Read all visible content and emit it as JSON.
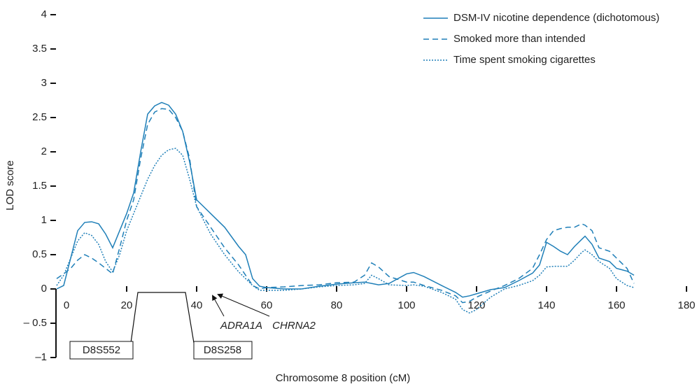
{
  "chart_data": {
    "type": "line",
    "x_label": "Chromosome 8 position (cM)",
    "y_label": "LOD score",
    "legend": "upper right",
    "x": [
      0,
      2,
      4,
      6,
      8,
      10,
      12,
      14,
      16,
      18,
      20,
      22,
      24,
      26,
      28,
      30,
      32,
      34,
      36,
      38,
      40,
      42,
      44,
      48,
      52,
      54,
      56,
      58,
      60,
      65,
      70,
      75,
      80,
      85,
      88,
      90,
      92,
      95,
      100,
      102,
      105,
      110,
      114,
      116,
      118,
      120,
      124,
      128,
      132,
      136,
      138,
      140,
      142,
      144,
      146,
      148,
      150,
      151,
      153,
      155,
      158,
      160,
      163,
      165
    ],
    "series": [
      {
        "name": "DSM-IV nicotine dependence (dichotomous)",
        "color": "#1f7fb8",
        "style": "solid",
        "values": [
          0,
          0.05,
          0.45,
          0.85,
          0.97,
          0.98,
          0.95,
          0.8,
          0.6,
          0.85,
          1.1,
          1.4,
          2.0,
          2.55,
          2.67,
          2.72,
          2.68,
          2.55,
          2.3,
          1.85,
          1.3,
          1.2,
          1.1,
          0.9,
          0.62,
          0.5,
          0.15,
          0.04,
          0.02,
          0.0,
          0.0,
          0.04,
          0.07,
          0.09,
          0.1,
          0.08,
          0.06,
          0.08,
          0.22,
          0.24,
          0.18,
          0.05,
          -0.05,
          -0.12,
          -0.1,
          -0.07,
          -0.01,
          0.02,
          0.12,
          0.23,
          0.35,
          0.68,
          0.62,
          0.55,
          0.5,
          0.62,
          0.72,
          0.77,
          0.65,
          0.45,
          0.4,
          0.3,
          0.26,
          0.2
        ]
      },
      {
        "name": "Smoked more than intended",
        "color": "#1f7fb8",
        "style": "dashed",
        "values": [
          0.15,
          0.22,
          0.3,
          0.42,
          0.5,
          0.45,
          0.38,
          0.3,
          0.22,
          0.6,
          1.0,
          1.3,
          1.9,
          2.4,
          2.58,
          2.63,
          2.62,
          2.5,
          2.3,
          1.9,
          1.2,
          1.05,
          0.9,
          0.6,
          0.35,
          0.2,
          0.05,
          0,
          0.02,
          0.03,
          0.05,
          0.06,
          0.09,
          0.1,
          0.2,
          0.38,
          0.32,
          0.18,
          0.1,
          0.1,
          0.05,
          -0.02,
          -0.1,
          -0.2,
          -0.18,
          -0.12,
          -0.03,
          0.05,
          0.15,
          0.3,
          0.5,
          0.72,
          0.85,
          0.88,
          0.9,
          0.9,
          0.95,
          0.93,
          0.85,
          0.6,
          0.55,
          0.45,
          0.3,
          0.08
        ]
      },
      {
        "name": "Time spent smoking cigarettes",
        "color": "#1f7fb8",
        "style": "dotted",
        "values": [
          0.05,
          0.2,
          0.45,
          0.7,
          0.82,
          0.78,
          0.65,
          0.4,
          0.25,
          0.5,
          0.85,
          1.1,
          1.35,
          1.6,
          1.8,
          1.95,
          2.03,
          2.05,
          1.95,
          1.6,
          1.2,
          1.0,
          0.8,
          0.5,
          0.25,
          0.15,
          0.05,
          -0.02,
          -0.02,
          -0.02,
          0,
          0.03,
          0.05,
          0.06,
          0.08,
          0.2,
          0.15,
          0.06,
          0.05,
          0.06,
          0.04,
          -0.05,
          -0.15,
          -0.3,
          -0.35,
          -0.3,
          -0.12,
          0,
          0.05,
          0.12,
          0.2,
          0.32,
          0.33,
          0.33,
          0.33,
          0.42,
          0.53,
          0.57,
          0.5,
          0.4,
          0.3,
          0.15,
          0.05,
          0.02
        ]
      }
    ],
    "xlim": [
      0,
      180
    ],
    "xticks": [
      0,
      20,
      40,
      60,
      80,
      100,
      120,
      140,
      160,
      180
    ],
    "ylim": [
      -1,
      4
    ],
    "yticks": [
      {
        "value": -1,
        "label": "–1"
      },
      {
        "value": -0.5,
        "label": "– 0.5"
      },
      0,
      0.5,
      1,
      1.5,
      2,
      2.5,
      3,
      3.5,
      4
    ],
    "markers": [
      "D8S552",
      "D8S258"
    ],
    "genes": [
      "ADRA1A",
      "CHRNA2"
    ]
  }
}
